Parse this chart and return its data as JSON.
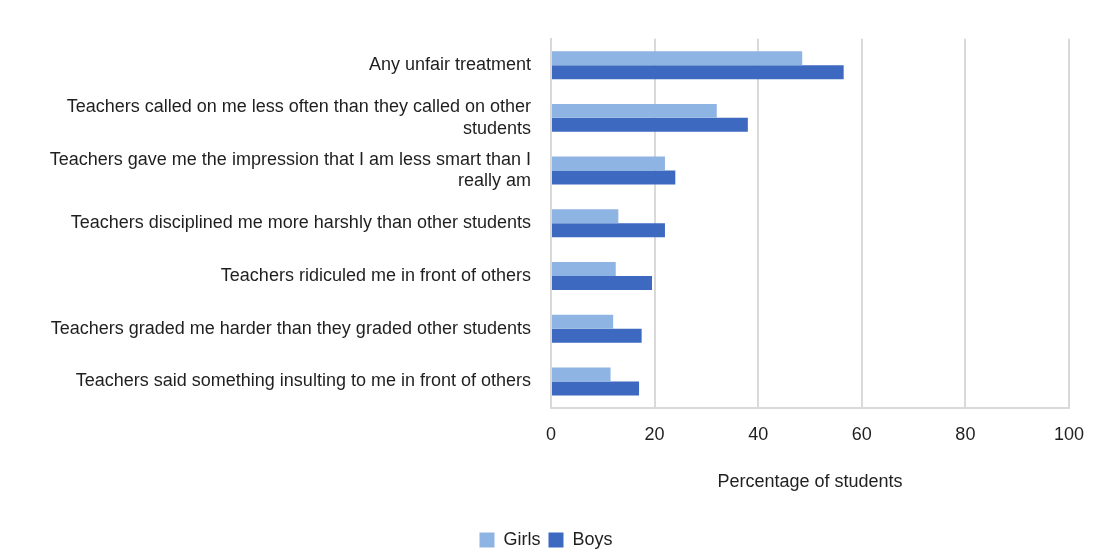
{
  "chart_data": {
    "type": "bar",
    "orientation": "horizontal",
    "categories": [
      "Any unfair treatment",
      "Teachers called on me less often than they called on other students",
      "Teachers gave me the impression that I am less smart than I really am",
      "Teachers disciplined me more harshly than other students",
      "Teachers ridiculed me in front of others",
      "Teachers graded me harder than they graded other students",
      "Teachers said something insulting to me in front of others"
    ],
    "series": [
      {
        "name": "Girls",
        "color": "#8eb4e3",
        "values": [
          48.5,
          32,
          22,
          13,
          12.5,
          12,
          11.5
        ]
      },
      {
        "name": "Boys",
        "color": "#3d69c0",
        "values": [
          56.5,
          38,
          24,
          22,
          19.5,
          17.5,
          17
        ]
      }
    ],
    "xlabel": "Percentage of students",
    "xlim": [
      0,
      100
    ],
    "xticks": [
      0,
      20,
      40,
      60,
      80,
      100
    ],
    "grid": "x",
    "legend": "bottom"
  }
}
